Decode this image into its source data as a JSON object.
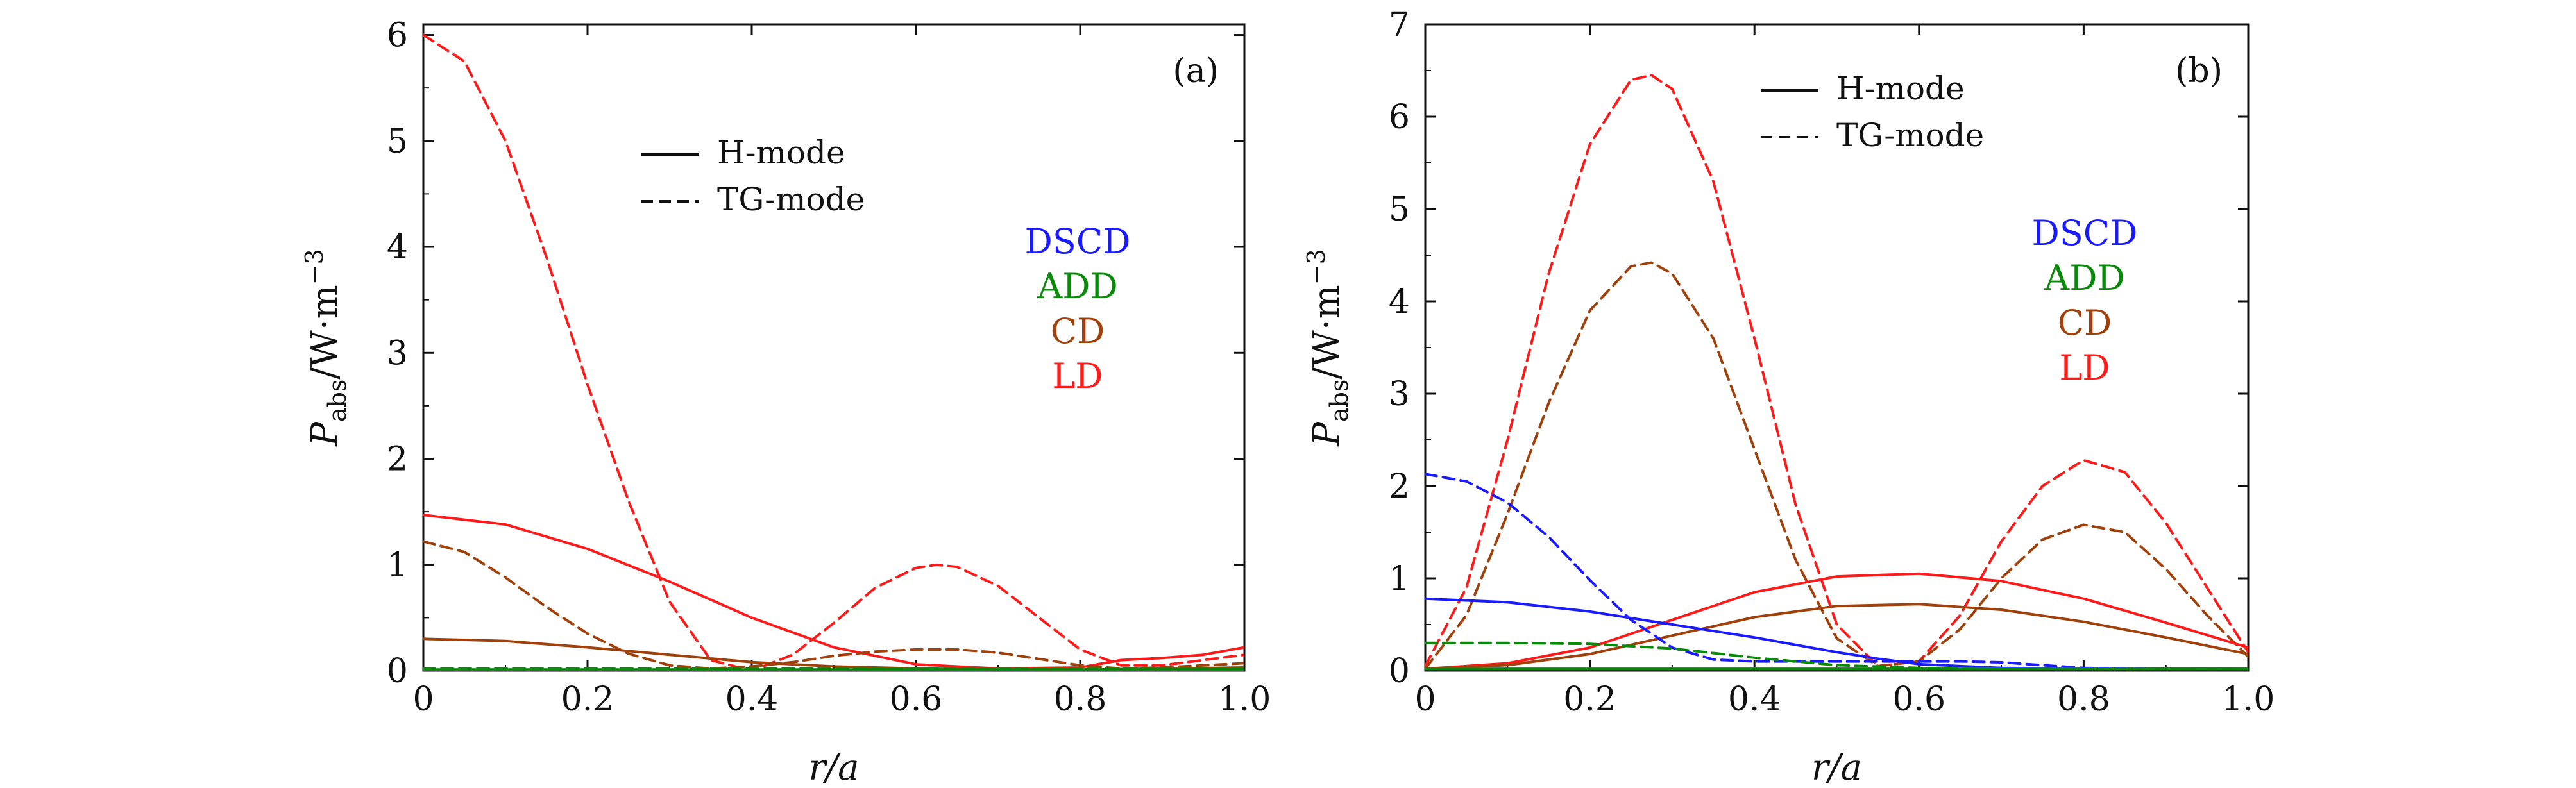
{
  "chart_data": [
    {
      "type": "line",
      "panel_tag": "(a)",
      "xlabel": "r/a",
      "ylabel": {
        "symbol": "P",
        "subscript": "abs",
        "units": "/W·m",
        "exponent": "−3"
      },
      "xlim": [
        0,
        1.0
      ],
      "ylim": [
        0,
        6.1
      ],
      "xticks": [
        "0",
        "0.2",
        "0.4",
        "0.6",
        "0.8",
        "1.0"
      ],
      "xtick_values": [
        0,
        0.2,
        0.4,
        0.6,
        0.8,
        1.0
      ],
      "yticks": [
        "0",
        "1",
        "2",
        "3",
        "4",
        "5",
        "6"
      ],
      "ytick_values": [
        0,
        1,
        2,
        3,
        4,
        5,
        6
      ],
      "grid": false,
      "style_legend": {
        "placement": "upper-center",
        "entries": [
          {
            "label": "H-mode",
            "dash": "solid"
          },
          {
            "label": "TG-mode",
            "dash": "dashed"
          }
        ]
      },
      "model_labels": {
        "placement": "right",
        "entries": [
          {
            "label": "DSCD",
            "color": "#1a1aff"
          },
          {
            "label": "ADD",
            "color": "#0a8a0a"
          },
          {
            "label": "CD",
            "color": "#a0400a"
          },
          {
            "label": "LD",
            "color": "#ff1a1a"
          }
        ]
      },
      "series": [
        {
          "model": "LD",
          "mode": "TG-mode",
          "color": "#ff1a1a",
          "dash": "dashed",
          "x": [
            0,
            0.05,
            0.1,
            0.15,
            0.2,
            0.25,
            0.3,
            0.35,
            0.4,
            0.45,
            0.5,
            0.55,
            0.6,
            0.625,
            0.65,
            0.7,
            0.75,
            0.8,
            0.85,
            0.9,
            0.95,
            1.0
          ],
          "y": [
            6.0,
            5.75,
            5.0,
            3.9,
            2.7,
            1.6,
            0.65,
            0.1,
            0.0,
            0.15,
            0.45,
            0.78,
            0.97,
            1.0,
            0.98,
            0.8,
            0.5,
            0.2,
            0.05,
            0.05,
            0.1,
            0.15
          ]
        },
        {
          "model": "LD",
          "mode": "H-mode",
          "color": "#ff1a1a",
          "dash": "solid",
          "x": [
            0,
            0.1,
            0.2,
            0.3,
            0.4,
            0.5,
            0.6,
            0.7,
            0.8,
            0.85,
            0.9,
            0.95,
            1.0
          ],
          "y": [
            1.47,
            1.38,
            1.15,
            0.84,
            0.5,
            0.22,
            0.06,
            0.02,
            0.03,
            0.1,
            0.12,
            0.15,
            0.22
          ]
        },
        {
          "model": "CD",
          "mode": "TG-mode",
          "color": "#a0400a",
          "dash": "dashed",
          "x": [
            0,
            0.05,
            0.1,
            0.15,
            0.2,
            0.25,
            0.3,
            0.35,
            0.4,
            0.45,
            0.5,
            0.55,
            0.6,
            0.65,
            0.7,
            0.75,
            0.8,
            0.85,
            0.9,
            0.95,
            1.0
          ],
          "y": [
            1.22,
            1.12,
            0.88,
            0.6,
            0.35,
            0.16,
            0.05,
            0.02,
            0.04,
            0.08,
            0.14,
            0.18,
            0.2,
            0.2,
            0.17,
            0.11,
            0.05,
            0.02,
            0.03,
            0.05,
            0.07
          ]
        },
        {
          "model": "CD",
          "mode": "H-mode",
          "color": "#a0400a",
          "dash": "solid",
          "x": [
            0,
            0.1,
            0.2,
            0.3,
            0.4,
            0.5,
            0.6,
            0.7,
            0.8,
            0.9,
            1.0
          ],
          "y": [
            0.3,
            0.28,
            0.22,
            0.15,
            0.08,
            0.04,
            0.02,
            0.01,
            0.01,
            0.02,
            0.03
          ]
        },
        {
          "model": "ADD",
          "mode": "H-mode",
          "color": "#0a8a0a",
          "dash": "solid",
          "x": [
            0,
            1.0
          ],
          "y": [
            0.01,
            0.01
          ]
        },
        {
          "model": "ADD",
          "mode": "TG-mode",
          "color": "#0a8a0a",
          "dash": "dashed",
          "x": [
            0,
            1.0
          ],
          "y": [
            0.02,
            0.02
          ]
        }
      ]
    },
    {
      "type": "line",
      "panel_tag": "(b)",
      "xlabel": "r/a",
      "ylabel": {
        "symbol": "P",
        "subscript": "abs",
        "units": "/W·m",
        "exponent": "−3"
      },
      "xlim": [
        0,
        1.0
      ],
      "ylim": [
        0,
        7.0
      ],
      "xticks": [
        "0",
        "0.2",
        "0.4",
        "0.6",
        "0.8",
        "1.0"
      ],
      "xtick_values": [
        0,
        0.2,
        0.4,
        0.6,
        0.8,
        1.0
      ],
      "yticks": [
        "0",
        "1",
        "2",
        "3",
        "4",
        "5",
        "6",
        "7"
      ],
      "ytick_values": [
        0,
        1,
        2,
        3,
        4,
        5,
        6,
        7
      ],
      "grid": false,
      "style_legend": {
        "placement": "upper-center",
        "entries": [
          {
            "label": "H-mode",
            "dash": "solid"
          },
          {
            "label": "TG-mode",
            "dash": "dashed"
          }
        ]
      },
      "model_labels": {
        "placement": "right",
        "entries": [
          {
            "label": "DSCD",
            "color": "#1a1aff"
          },
          {
            "label": "ADD",
            "color": "#0a8a0a"
          },
          {
            "label": "CD",
            "color": "#a0400a"
          },
          {
            "label": "LD",
            "color": "#ff1a1a"
          }
        ]
      },
      "series": [
        {
          "model": "LD",
          "mode": "TG-mode",
          "color": "#ff1a1a",
          "dash": "dashed",
          "x": [
            0,
            0.05,
            0.1,
            0.15,
            0.2,
            0.25,
            0.275,
            0.3,
            0.35,
            0.4,
            0.45,
            0.5,
            0.55,
            0.6,
            0.65,
            0.7,
            0.75,
            0.8,
            0.85,
            0.9,
            0.95,
            1.0
          ],
          "y": [
            0.05,
            0.9,
            2.5,
            4.3,
            5.7,
            6.4,
            6.45,
            6.3,
            5.3,
            3.6,
            1.8,
            0.5,
            0.05,
            0.1,
            0.6,
            1.4,
            2.0,
            2.28,
            2.15,
            1.6,
            0.9,
            0.2
          ]
        },
        {
          "model": "CD",
          "mode": "TG-mode",
          "color": "#a0400a",
          "dash": "dashed",
          "x": [
            0,
            0.05,
            0.1,
            0.15,
            0.2,
            0.25,
            0.275,
            0.3,
            0.35,
            0.4,
            0.45,
            0.5,
            0.55,
            0.6,
            0.65,
            0.7,
            0.75,
            0.8,
            0.85,
            0.9,
            0.95,
            1.0
          ],
          "y": [
            0.02,
            0.6,
            1.7,
            2.9,
            3.9,
            4.38,
            4.42,
            4.3,
            3.6,
            2.4,
            1.2,
            0.35,
            0.05,
            0.1,
            0.45,
            1.0,
            1.42,
            1.58,
            1.5,
            1.1,
            0.6,
            0.15
          ]
        },
        {
          "model": "LD",
          "mode": "H-mode",
          "color": "#ff1a1a",
          "dash": "solid",
          "x": [
            0,
            0.1,
            0.2,
            0.3,
            0.4,
            0.5,
            0.6,
            0.7,
            0.8,
            0.9,
            1.0
          ],
          "y": [
            0.02,
            0.08,
            0.25,
            0.55,
            0.85,
            1.02,
            1.05,
            0.97,
            0.78,
            0.52,
            0.25
          ]
        },
        {
          "model": "CD",
          "mode": "H-mode",
          "color": "#a0400a",
          "dash": "solid",
          "x": [
            0,
            0.1,
            0.2,
            0.3,
            0.4,
            0.5,
            0.6,
            0.7,
            0.8,
            0.9,
            1.0
          ],
          "y": [
            0.02,
            0.06,
            0.18,
            0.38,
            0.58,
            0.7,
            0.72,
            0.66,
            0.53,
            0.36,
            0.18
          ]
        },
        {
          "model": "DSCD",
          "mode": "TG-mode",
          "color": "#1a1aff",
          "dash": "dashed",
          "x": [
            0,
            0.05,
            0.1,
            0.15,
            0.2,
            0.25,
            0.3,
            0.35,
            0.4,
            0.45,
            0.5,
            0.55,
            0.6,
            0.65,
            0.7,
            0.75,
            0.8,
            0.9,
            1.0
          ],
          "y": [
            2.13,
            2.05,
            1.82,
            1.45,
            0.98,
            0.55,
            0.25,
            0.12,
            0.1,
            0.1,
            0.1,
            0.1,
            0.1,
            0.1,
            0.09,
            0.06,
            0.03,
            0.02,
            0.02
          ]
        },
        {
          "model": "DSCD",
          "mode": "H-mode",
          "color": "#1a1aff",
          "dash": "solid",
          "x": [
            0,
            0.1,
            0.2,
            0.3,
            0.4,
            0.5,
            0.55,
            0.6,
            0.7,
            0.8,
            0.9,
            1.0
          ],
          "y": [
            0.78,
            0.74,
            0.64,
            0.5,
            0.36,
            0.2,
            0.13,
            0.07,
            0.03,
            0.02,
            0.02,
            0.02
          ]
        },
        {
          "model": "ADD",
          "mode": "TG-mode",
          "color": "#0a8a0a",
          "dash": "dashed",
          "x": [
            0,
            0.1,
            0.2,
            0.3,
            0.4,
            0.5,
            0.6,
            0.7,
            0.8,
            0.9,
            1.0
          ],
          "y": [
            0.3,
            0.3,
            0.29,
            0.24,
            0.14,
            0.06,
            0.03,
            0.02,
            0.02,
            0.02,
            0.02
          ]
        },
        {
          "model": "ADD",
          "mode": "H-mode",
          "color": "#0a8a0a",
          "dash": "solid",
          "x": [
            0,
            1.0
          ],
          "y": [
            0.02,
            0.02
          ]
        }
      ]
    }
  ]
}
